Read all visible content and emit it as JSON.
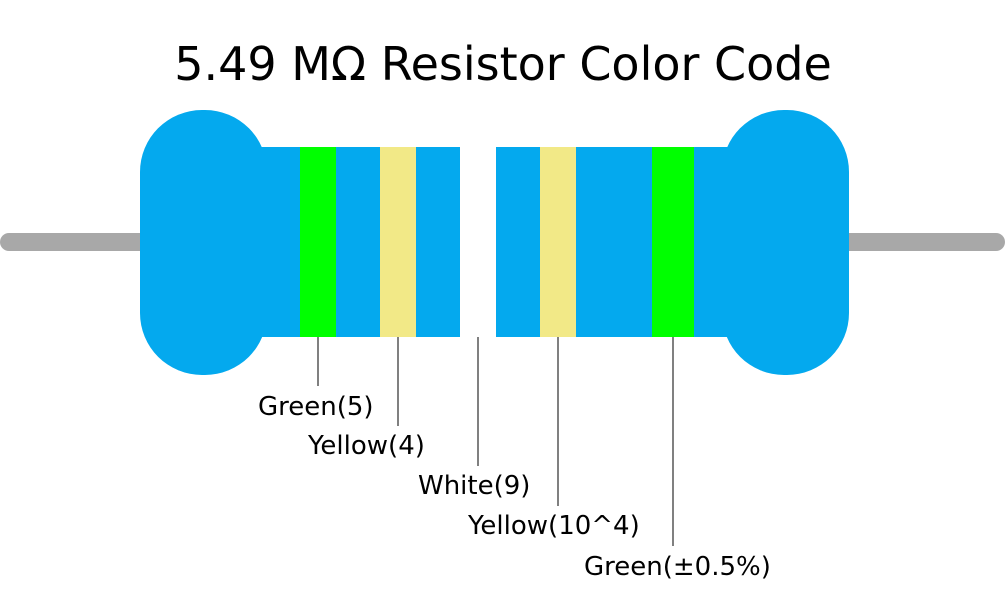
{
  "title": "5.49 MΩ Resistor Color Code",
  "bands": [
    {
      "label": "Green(5)",
      "color": "#00ff00"
    },
    {
      "label": "Yellow(4)",
      "color": "#f2e987"
    },
    {
      "label": "White(9)",
      "color": "#ffffff"
    },
    {
      "label": "Yellow(10^4)",
      "color": "#f2e987"
    },
    {
      "label": "Green(±0.5%)",
      "color": "#00ff00"
    }
  ]
}
